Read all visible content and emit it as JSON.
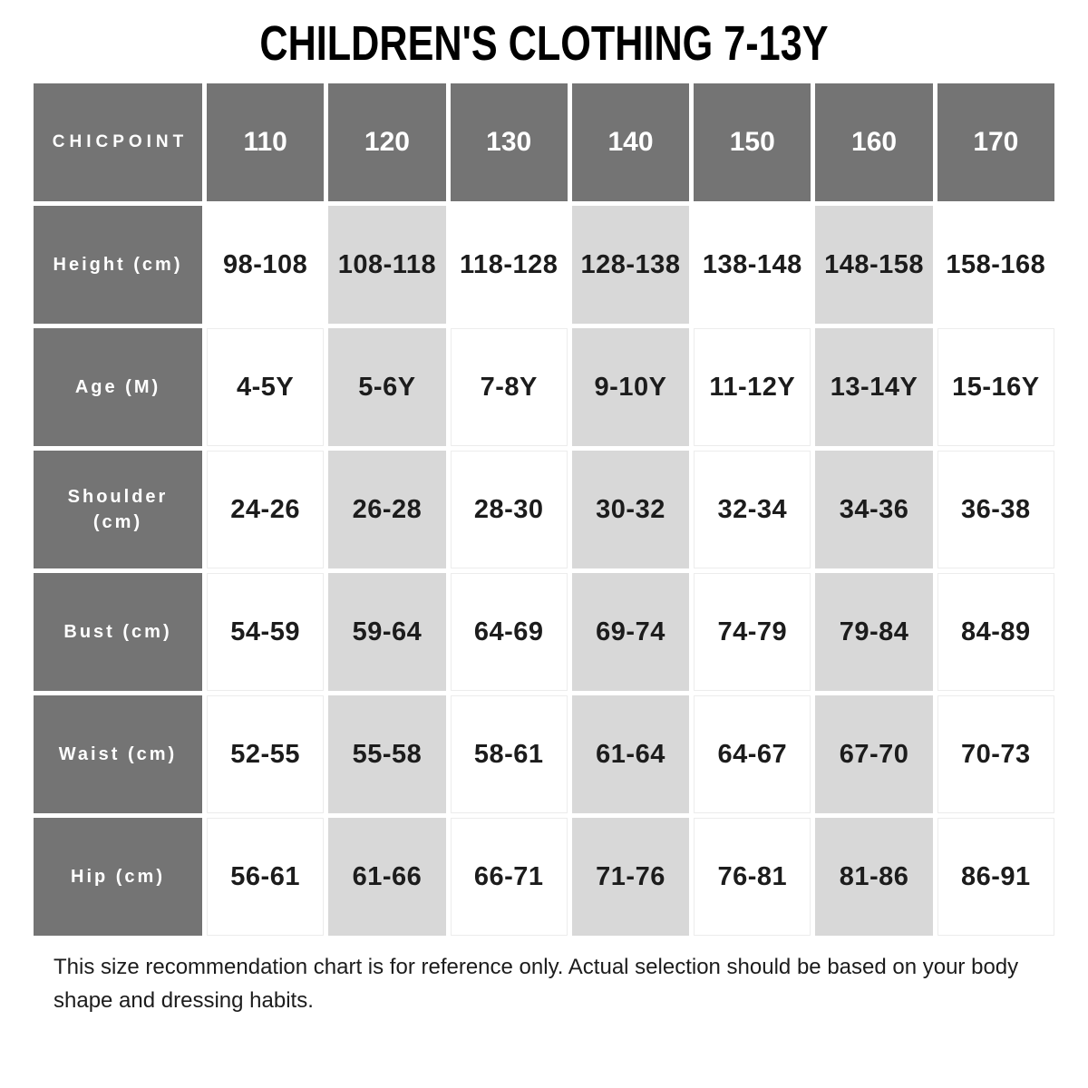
{
  "title": "CHILDREN'S CLOTHING 7-13Y",
  "colors": {
    "header_cell_bg": "#747474",
    "highlight_col_bg": "#d8d8d8",
    "plain_col_bg": "#ffffff",
    "header_text": "#ffffff",
    "value_text": "#1c1c1c",
    "title_text": "#000000"
  },
  "chart_data": {
    "type": "table",
    "title": "CHILDREN'S CLOTHING 7-13Y",
    "corner_label": "CHICPOINT",
    "columns": [
      "110",
      "120",
      "130",
      "140",
      "150",
      "160",
      "170"
    ],
    "highlighted_columns": [
      "120",
      "140",
      "160"
    ],
    "rows": [
      {
        "label": "Height (cm)",
        "values": [
          "98-108",
          "108-118",
          "118-128",
          "128-138",
          "138-148",
          "148-158",
          "158-168"
        ]
      },
      {
        "label": "Age (M)",
        "values": [
          "4-5Y",
          "5-6Y",
          "7-8Y",
          "9-10Y",
          "11-12Y",
          "13-14Y",
          "15-16Y"
        ]
      },
      {
        "label": "Shoulder (cm)",
        "values": [
          "24-26",
          "26-28",
          "28-30",
          "30-32",
          "32-34",
          "34-36",
          "36-38"
        ]
      },
      {
        "label": "Bust (cm)",
        "values": [
          "54-59",
          "59-64",
          "64-69",
          "69-74",
          "74-79",
          "79-84",
          "84-89"
        ]
      },
      {
        "label": "Waist (cm)",
        "values": [
          "52-55",
          "55-58",
          "58-61",
          "61-64",
          "64-67",
          "67-70",
          "70-73"
        ]
      },
      {
        "label": "Hip (cm)",
        "values": [
          "56-61",
          "61-66",
          "66-71",
          "71-76",
          "76-81",
          "81-86",
          "86-91"
        ]
      }
    ],
    "note": "This size recommendation chart is for reference only. Actual selection should be based on your body shape and dressing habits."
  }
}
